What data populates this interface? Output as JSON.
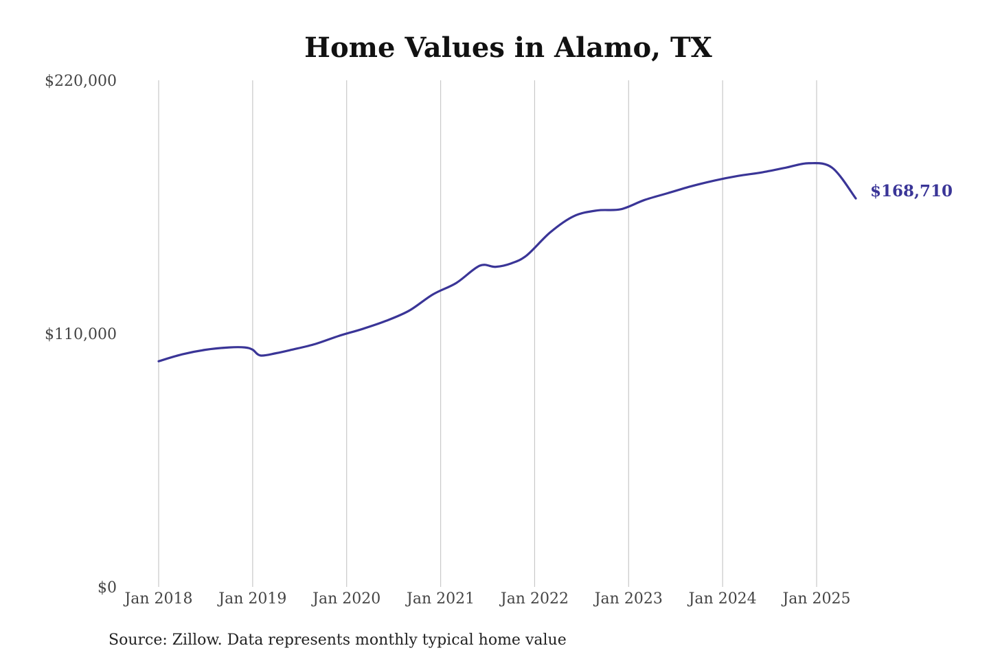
{
  "chart_data": {
    "type": "line",
    "title": "Home Values in Alamo, TX",
    "source": "Source: Zillow. Data represents monthly typical home value",
    "xlabel": "",
    "ylabel": "",
    "x_ticks": [
      "Jan 2018",
      "Jan 2019",
      "Jan 2020",
      "Jan 2021",
      "Jan 2022",
      "Jan 2023",
      "Jan 2024",
      "Jan 2025"
    ],
    "y_ticks": [
      "$0",
      "$110,000",
      "$220,000"
    ],
    "y_tick_values": [
      0,
      110000,
      220000
    ],
    "ylim": [
      0,
      220000
    ],
    "xlim": [
      "2018-01",
      "2025-06"
    ],
    "grid": "vertical lines at x ticks",
    "line_color": "#3a3597",
    "end_label": "$168,710",
    "series": [
      {
        "x": [
          "2018-01",
          "2018-04",
          "2018-07",
          "2018-10",
          "2018-12",
          "2019-01",
          "2019-02",
          "2019-04",
          "2019-06",
          "2019-09",
          "2019-12",
          "2020-03",
          "2020-06",
          "2020-09",
          "2020-12",
          "2021-03",
          "2021-06",
          "2021-08",
          "2021-10",
          "2021-12",
          "2022-03",
          "2022-06",
          "2022-09",
          "2022-12",
          "2023-03",
          "2023-06",
          "2023-09",
          "2023-12",
          "2024-03",
          "2024-06",
          "2024-09",
          "2024-12",
          "2025-03",
          "2025-06"
        ],
        "y": [
          98000,
          101000,
          103000,
          104000,
          104000,
          103000,
          100500,
          101500,
          103000,
          105500,
          109000,
          112000,
          115500,
          120000,
          127000,
          132000,
          139500,
          139000,
          140500,
          144000,
          154000,
          161000,
          163500,
          164000,
          168000,
          171000,
          174000,
          176500,
          178500,
          180000,
          182000,
          184000,
          182000,
          168710
        ]
      }
    ]
  }
}
